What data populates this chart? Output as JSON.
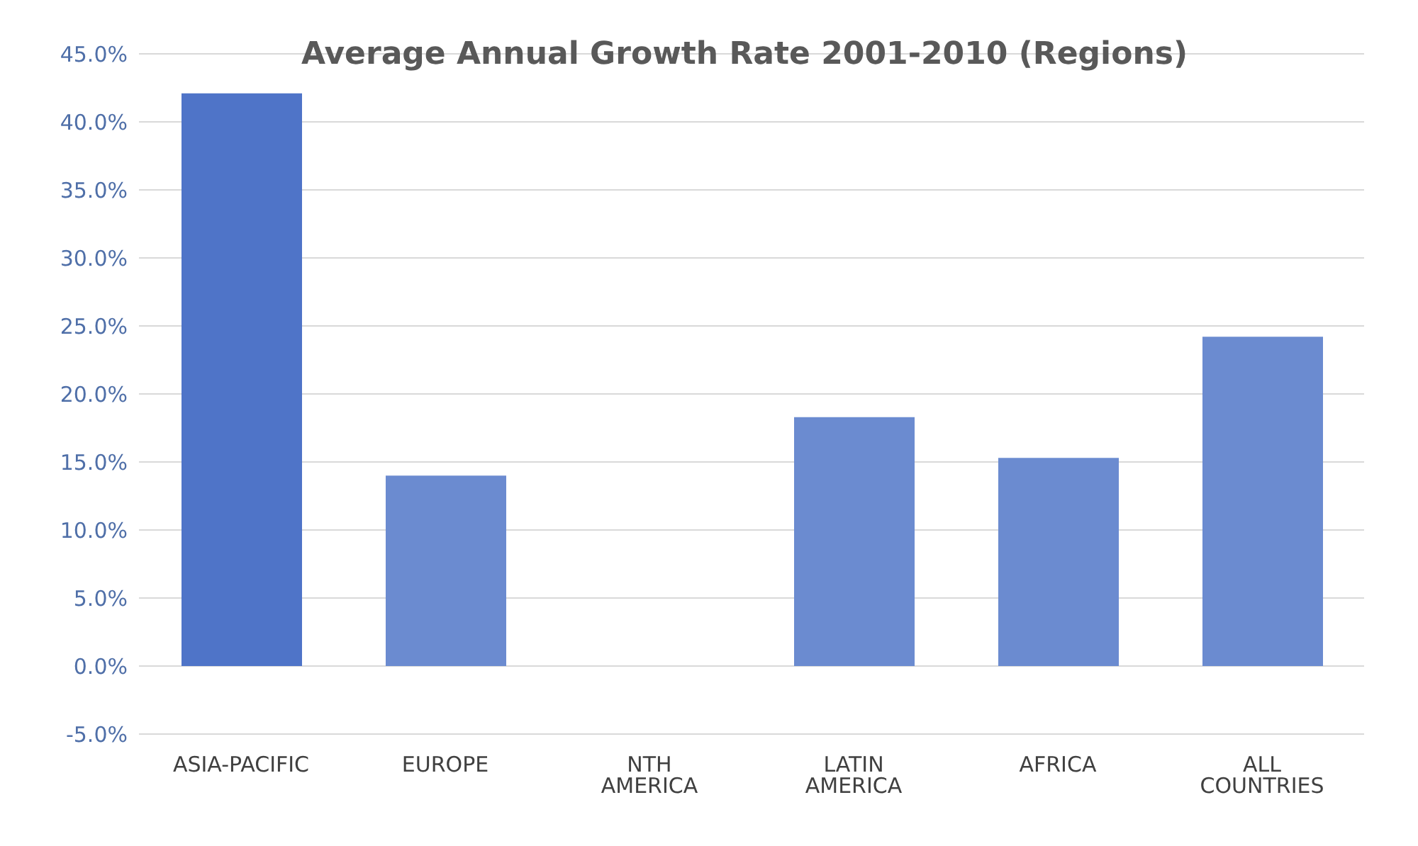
{
  "chart_data": {
    "type": "bar",
    "title": "Average Annual Growth Rate 2001-2010 (Regions)",
    "categories": [
      "ASIA-PACIFIC",
      "EUROPE",
      "NTH AMERICA",
      "LATIN AMERICA",
      "AFRICA",
      "ALL COUNTRIES"
    ],
    "values": [
      42.1,
      14.0,
      0,
      18.3,
      15.3,
      24.2
    ],
    "colors": [
      "#4f74c8",
      "#6b8bd0",
      "#6b8bd0",
      "#6b8bd0",
      "#6b8bd0",
      "#6b8bd0"
    ],
    "ylim": [
      -5,
      45
    ],
    "yticks": [
      {
        "value": -5,
        "label": "-5.0%"
      },
      {
        "value": 0,
        "label": "0.0%"
      },
      {
        "value": 5,
        "label": "5.0%"
      },
      {
        "value": 10,
        "label": "10.0%"
      },
      {
        "value": 15,
        "label": "15.0%"
      },
      {
        "value": 20,
        "label": "20.0%"
      },
      {
        "value": 25,
        "label": "25.0%"
      },
      {
        "value": 30,
        "label": "30.0%"
      },
      {
        "value": 35,
        "label": "35.0%"
      },
      {
        "value": 40,
        "label": "40.0%"
      },
      {
        "value": 45,
        "label": "45.0%"
      }
    ],
    "grid": "y",
    "legend": false
  }
}
